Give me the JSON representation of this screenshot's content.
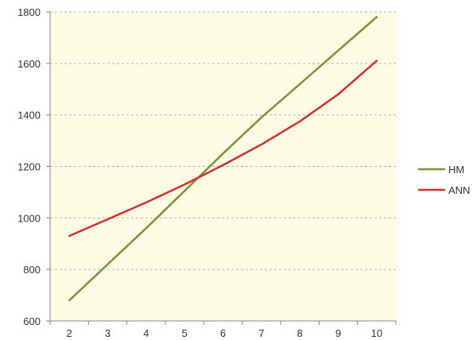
{
  "chart_data": {
    "type": "line",
    "x": [
      2,
      3,
      4,
      5,
      6,
      7,
      8,
      9,
      10
    ],
    "series": [
      {
        "name": "HM",
        "color": "#77933c",
        "values": [
          680,
          820,
          960,
          1105,
          1250,
          1390,
          1520,
          1650,
          1780
        ]
      },
      {
        "name": "ANN",
        "color": "#d42e2b",
        "values": [
          930,
          995,
          1060,
          1130,
          1205,
          1285,
          1375,
          1480,
          1610
        ]
      }
    ],
    "xticks": [
      "2",
      "3",
      "4",
      "5",
      "6",
      "7",
      "8",
      "9",
      "10"
    ],
    "yticks": [
      "600",
      "800",
      "1000",
      "1200",
      "1400",
      "1600",
      "1800"
    ],
    "xlim": [
      1.5,
      10.5
    ],
    "ylim": [
      600,
      1800
    ],
    "grid": "horizontal-dashed",
    "legend_position": "right",
    "plot_background": "#fdfbe3"
  }
}
